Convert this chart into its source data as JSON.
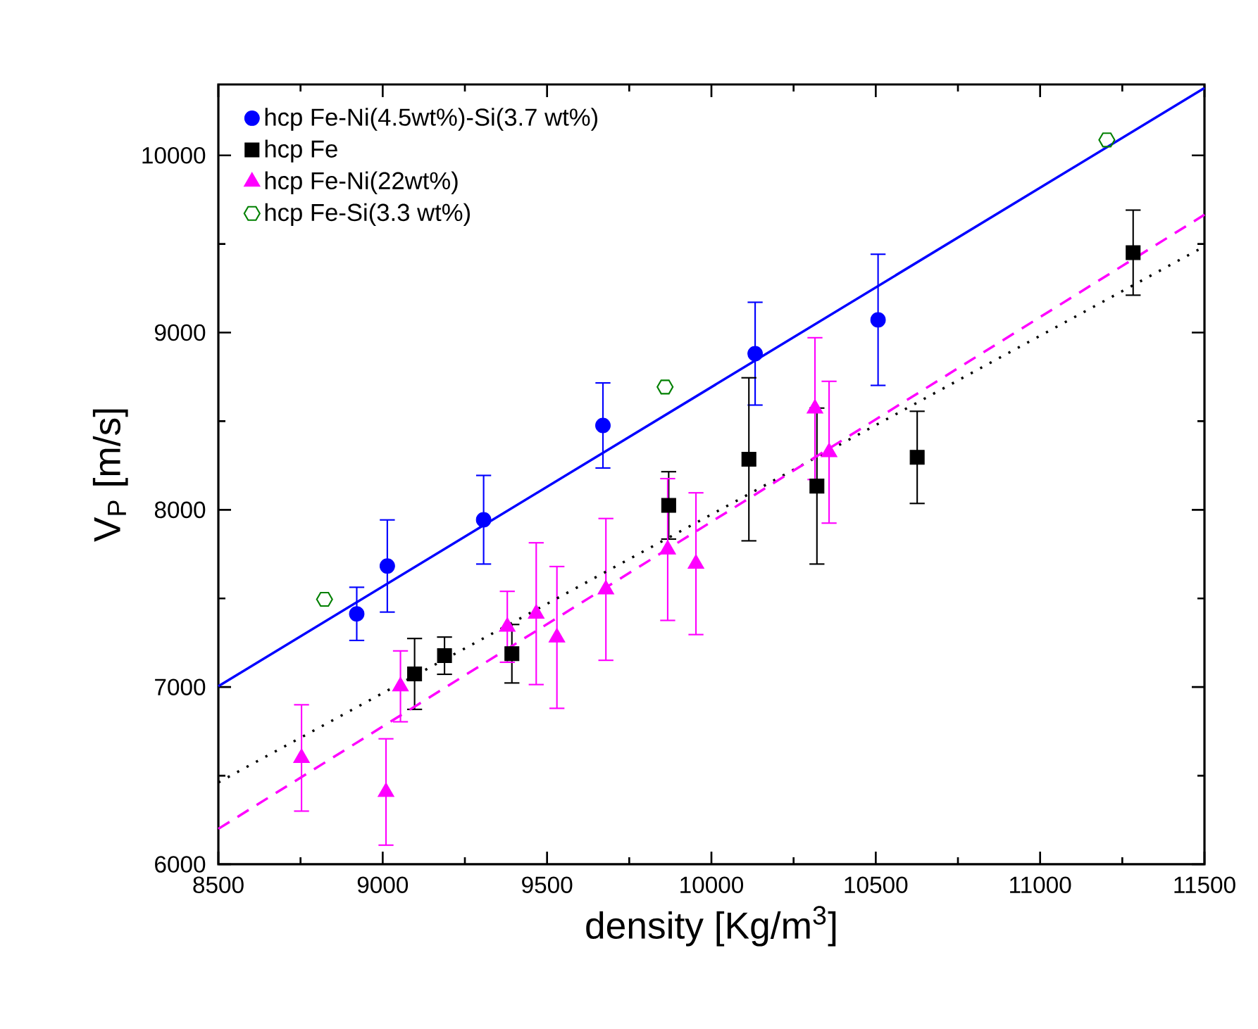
{
  "chart_data": {
    "type": "scatter",
    "xlabel": "density [Kg/m$^{3}$]",
    "ylabel": "V$_{P}$ [m/s]",
    "xlim": [
      8500,
      11500
    ],
    "ylim": [
      6000,
      10400
    ],
    "xticks": [
      8500,
      9000,
      9500,
      10000,
      10500,
      11000,
      11500
    ],
    "yticks": [
      6000,
      7000,
      8000,
      9000,
      10000
    ],
    "grid": false,
    "legend": "top left",
    "series": [
      {
        "name": "hcp Fe-Ni(4.5wt%)-Si(3.7 wt%)",
        "marker": "circle",
        "color": "#0000ff",
        "x": [
          8921,
          9014,
          9307,
          9670,
          10133,
          10507
        ],
        "values": [
          7413,
          7683,
          7944,
          8476,
          8881,
          9072
        ],
        "errors": [
          150,
          260,
          250,
          240,
          290,
          370
        ]
      },
      {
        "name": "hcp Fe",
        "marker": "square",
        "color": "#000000",
        "x": [
          9097,
          9188,
          9393,
          9870,
          10114,
          10321,
          10626,
          11283
        ],
        "values": [
          7074,
          7177,
          7188,
          8025,
          8285,
          8134,
          8296,
          9451
        ],
        "errors": [
          200,
          105,
          165,
          190,
          460,
          440,
          260,
          240
        ]
      },
      {
        "name": "hcp Fe-Ni(22wt%)",
        "marker": "triangle",
        "color": "#ff00ff",
        "x": [
          8753,
          9010,
          9054,
          9379,
          9467,
          9530,
          9679,
          9867,
          9953,
          10315,
          10358
        ],
        "values": [
          6600,
          6408,
          7004,
          7340,
          7414,
          7280,
          7551,
          7776,
          7696,
          8571,
          8325
        ],
        "errors": [
          300,
          300,
          200,
          200,
          400,
          400,
          400,
          400,
          400,
          400,
          400
        ]
      },
      {
        "name": "hcp Fe-Si(3.3 wt%)",
        "color": "#008000",
        "x": [
          8823,
          9859,
          11203
        ],
        "values": [
          7495,
          8693,
          10087
        ]
      },
      {
        "type": "line",
        "line_style": "solid",
        "color": "#0000ff",
        "x": [
          8500,
          11500
        ],
        "values": [
          7005,
          10380
        ]
      },
      {
        "type": "line",
        "line_style": "dotted",
        "color": "#000000",
        "x": [
          8500,
          11500
        ],
        "values": [
          6462,
          9486
        ]
      },
      {
        "type": "line",
        "line_style": "dashed",
        "color": "#ff00ff",
        "x": [
          8500,
          11500
        ],
        "values": [
          6200,
          9665
        ]
      }
    ]
  }
}
